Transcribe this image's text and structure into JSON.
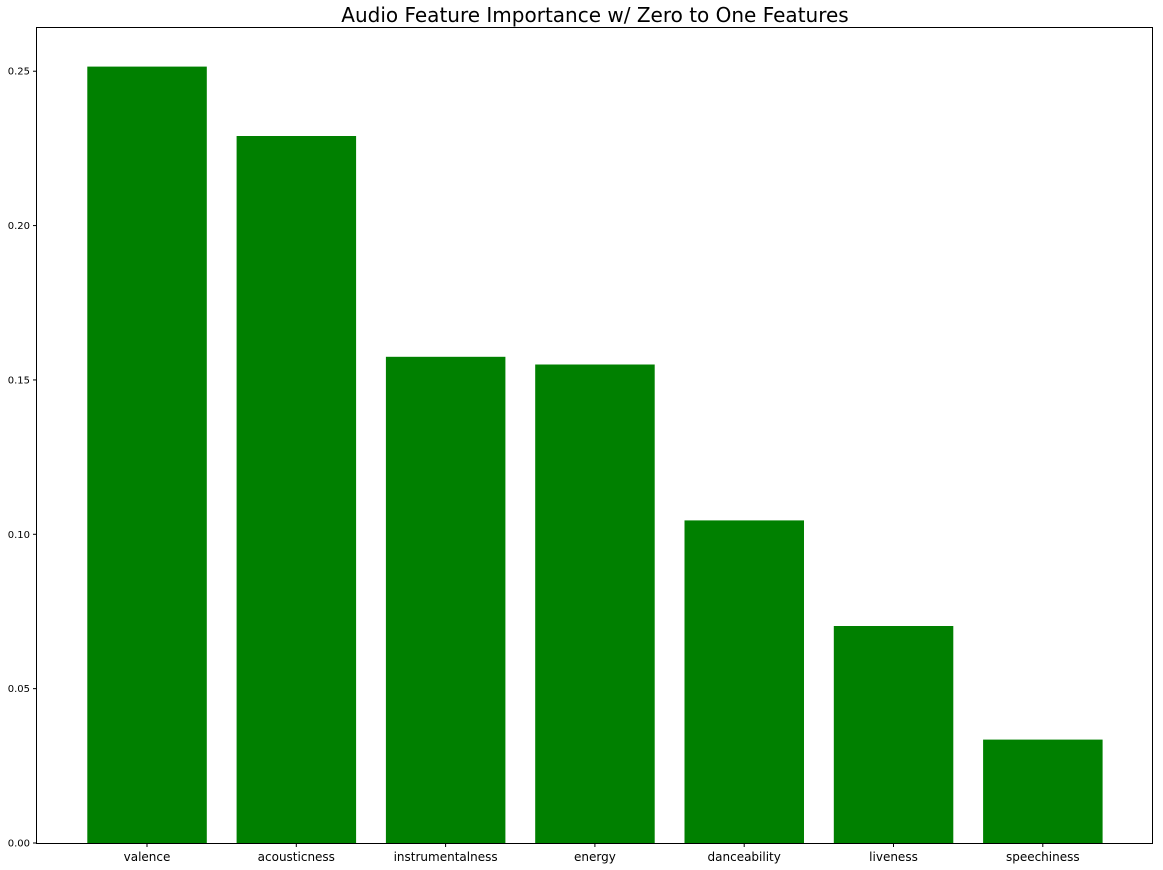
{
  "chart_data": {
    "type": "bar",
    "title": "Audio Feature Importance w/ Zero to One Features",
    "xlabel": "",
    "ylabel": "",
    "categories": [
      "valence",
      "acousticness",
      "instrumentalness",
      "energy",
      "danceability",
      "liveness",
      "speechiness"
    ],
    "values": [
      0.2515,
      0.229,
      0.1575,
      0.155,
      0.1045,
      0.0703,
      0.0335
    ],
    "ylim": [
      0,
      0.264
    ],
    "yticks": [
      0.0,
      0.05,
      0.1,
      0.15,
      0.2,
      0.25
    ],
    "ytick_labels": [
      "0.00",
      "0.05",
      "0.10",
      "0.15",
      "0.20",
      "0.25"
    ],
    "bar_color": "#008000",
    "grid": false,
    "legend": "none"
  }
}
